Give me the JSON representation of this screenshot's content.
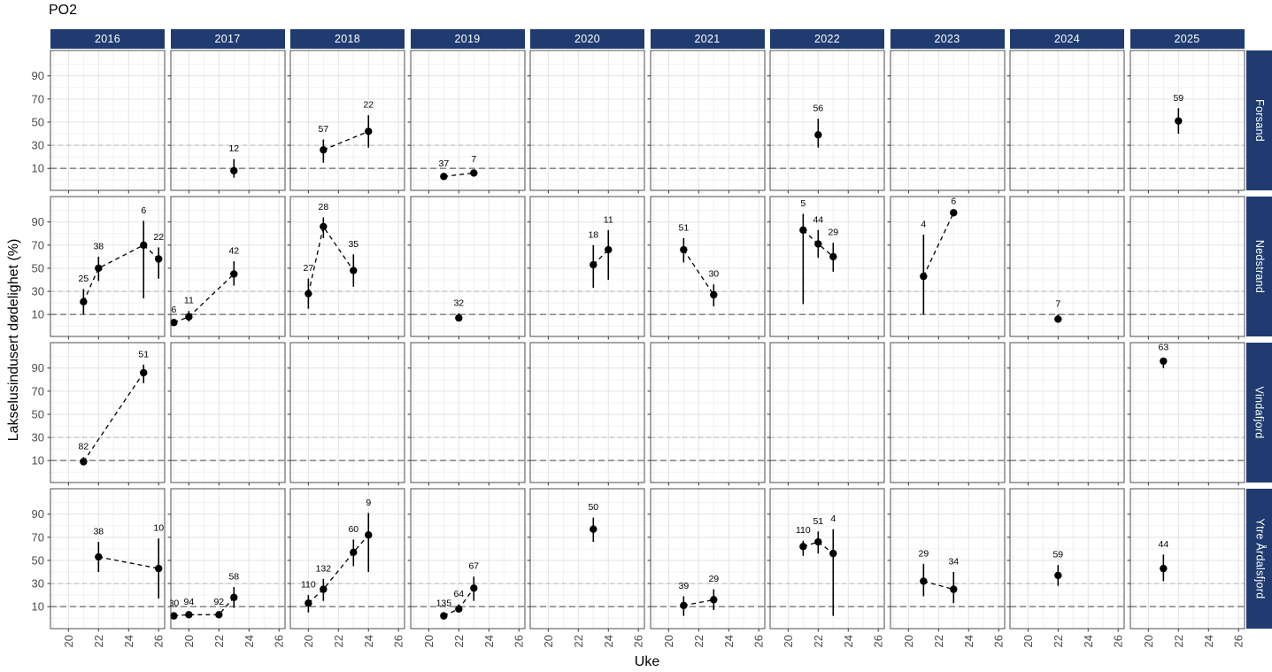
{
  "chart_data": {
    "type": "scatter",
    "title": "PO2",
    "xlabel": "Uke",
    "ylabel": "Lakselusindusert dødelighet (%)",
    "col_facets": [
      "2016",
      "2017",
      "2018",
      "2019",
      "2020",
      "2021",
      "2022",
      "2023",
      "2024",
      "2025"
    ],
    "row_facets": [
      "Forsand",
      "Nedstrand",
      "Vindafjord",
      "Ytre Årdalsfjord"
    ],
    "x_ticks": [
      20,
      22,
      24,
      26
    ],
    "x_minor": [
      19,
      21,
      23,
      25
    ],
    "y_ticks": [
      10,
      30,
      50,
      70,
      90
    ],
    "y_minor": [
      0,
      20,
      40,
      60,
      80,
      100
    ],
    "xlim": [
      18.8,
      26.4
    ],
    "ylim": [
      -9,
      112
    ],
    "legend": "none",
    "grid": "on",
    "ref_lines": [
      {
        "y": 30,
        "color": "#b3b3b3",
        "width": 1,
        "dash": "5,4"
      },
      {
        "y": 10,
        "color": "#8a8a8a",
        "width": 1.6,
        "dash": "7,4"
      }
    ],
    "colors": {
      "strip_fill": "#1f3b70",
      "strip_text": "#ffffff",
      "point": "#000000",
      "panel_border": "#4d4d4d",
      "grid_major": "#e3e3e3",
      "grid_minor": "#f0f0f0",
      "tick_label": "#4d4d4d"
    },
    "series": {
      "Forsand": {
        "2017": [
          {
            "w": 23,
            "v": 8,
            "lo": 2,
            "hi": 18,
            "n": "12"
          }
        ],
        "2018": [
          {
            "w": 21,
            "v": 26,
            "lo": 15,
            "hi": 35,
            "n": "57"
          },
          {
            "w": 24,
            "v": 42,
            "lo": 28,
            "hi": 56,
            "n": "22"
          }
        ],
        "2019": [
          {
            "w": 21,
            "v": 3,
            "lo": 2,
            "hi": 5,
            "n": "37"
          },
          {
            "w": 23,
            "v": 6,
            "lo": 3,
            "hi": 9,
            "n": "7"
          }
        ],
        "2022": [
          {
            "w": 22,
            "v": 39,
            "lo": 28,
            "hi": 53,
            "n": "56"
          }
        ],
        "2025": [
          {
            "w": 22,
            "v": 51,
            "lo": 40,
            "hi": 62,
            "n": "59"
          }
        ]
      },
      "Nedstrand": {
        "2016": [
          {
            "w": 21,
            "v": 21,
            "lo": 10,
            "hi": 32,
            "n": "25"
          },
          {
            "w": 22,
            "v": 50,
            "lo": 39,
            "hi": 60,
            "n": "38"
          },
          {
            "w": 25,
            "v": 70,
            "lo": 24,
            "hi": 91,
            "n": "6"
          },
          {
            "w": 26,
            "v": 58,
            "lo": 41,
            "hi": 68,
            "n": "22"
          }
        ],
        "2017": [
          {
            "w": 19,
            "v": 3,
            "lo": 2,
            "hi": 5,
            "n": "6"
          },
          {
            "w": 20,
            "v": 8,
            "lo": 4,
            "hi": 13,
            "n": "11"
          },
          {
            "w": 23,
            "v": 45,
            "lo": 35,
            "hi": 56,
            "n": "42"
          }
        ],
        "2018": [
          {
            "w": 20,
            "v": 28,
            "lo": 15,
            "hi": 41,
            "n": "27"
          },
          {
            "w": 21,
            "v": 86,
            "lo": 76,
            "hi": 94,
            "n": "28"
          },
          {
            "w": 23,
            "v": 48,
            "lo": 34,
            "hi": 62,
            "n": "35"
          }
        ],
        "2019": [
          {
            "w": 22,
            "v": 7,
            "lo": 5,
            "hi": 11,
            "n": "32"
          }
        ],
        "2020": [
          {
            "w": 23,
            "v": 53,
            "lo": 33,
            "hi": 70,
            "n": "18"
          },
          {
            "w": 24,
            "v": 66,
            "lo": 40,
            "hi": 83,
            "n": "11"
          }
        ],
        "2021": [
          {
            "w": 21,
            "v": 66,
            "lo": 55,
            "hi": 76,
            "n": "51"
          },
          {
            "w": 23,
            "v": 27,
            "lo": 17,
            "hi": 36,
            "n": "30"
          }
        ],
        "2022": [
          {
            "w": 21,
            "v": 83,
            "lo": 19,
            "hi": 97,
            "n": "5"
          },
          {
            "w": 22,
            "v": 71,
            "lo": 59,
            "hi": 83,
            "n": "44"
          },
          {
            "w": 23,
            "v": 60,
            "lo": 47,
            "hi": 72,
            "n": "29"
          }
        ],
        "2023": [
          {
            "w": 21,
            "v": 43,
            "lo": 10,
            "hi": 79,
            "n": "4"
          },
          {
            "w": 23,
            "v": 98,
            "lo": 95,
            "hi": 99,
            "n": "6"
          }
        ],
        "2024": [
          {
            "w": 22,
            "v": 6,
            "lo": 4,
            "hi": 10,
            "n": "7"
          }
        ]
      },
      "Vindafjord": {
        "2016": [
          {
            "w": 21,
            "v": 9,
            "lo": 6,
            "hi": 13,
            "n": "82"
          },
          {
            "w": 25,
            "v": 86,
            "lo": 77,
            "hi": 93,
            "n": "51"
          }
        ],
        "2025": [
          {
            "w": 21,
            "v": 96,
            "lo": 90,
            "hi": 99,
            "n": "63"
          }
        ]
      },
      "Ytre Årdalsfjord": {
        "2016": [
          {
            "w": 22,
            "v": 53,
            "lo": 40,
            "hi": 66,
            "n": "38"
          },
          {
            "w": 26,
            "v": 43,
            "lo": 17,
            "hi": 69,
            "n": "10"
          }
        ],
        "2017": [
          {
            "w": 19,
            "v": 2,
            "lo": 1,
            "hi": 4,
            "n": "30"
          },
          {
            "w": 20,
            "v": 3,
            "lo": 2,
            "hi": 5,
            "n": "94"
          },
          {
            "w": 22,
            "v": 3,
            "lo": 2,
            "hi": 5,
            "n": "92"
          },
          {
            "w": 23,
            "v": 18,
            "lo": 9,
            "hi": 27,
            "n": "58"
          }
        ],
        "2018": [
          {
            "w": 20,
            "v": 13,
            "lo": 5,
            "hi": 20,
            "n": "110"
          },
          {
            "w": 21,
            "v": 25,
            "lo": 15,
            "hi": 34,
            "n": "132"
          },
          {
            "w": 23,
            "v": 57,
            "lo": 45,
            "hi": 68,
            "n": "60"
          },
          {
            "w": 24,
            "v": 72,
            "lo": 40,
            "hi": 91,
            "n": "9"
          }
        ],
        "2019": [
          {
            "w": 21,
            "v": 2,
            "lo": 1,
            "hi": 4,
            "n": "135"
          },
          {
            "w": 22,
            "v": 8,
            "lo": 5,
            "hi": 12,
            "n": "64"
          },
          {
            "w": 23,
            "v": 26,
            "lo": 15,
            "hi": 36,
            "n": "67"
          }
        ],
        "2020": [
          {
            "w": 23,
            "v": 77,
            "lo": 66,
            "hi": 87,
            "n": "50"
          }
        ],
        "2021": [
          {
            "w": 21,
            "v": 11,
            "lo": 2,
            "hi": 19,
            "n": "39"
          },
          {
            "w": 23,
            "v": 16,
            "lo": 7,
            "hi": 25,
            "n": "29"
          }
        ],
        "2022": [
          {
            "w": 21,
            "v": 62,
            "lo": 54,
            "hi": 67,
            "n": "110"
          },
          {
            "w": 22,
            "v": 66,
            "lo": 56,
            "hi": 75,
            "n": "51"
          },
          {
            "w": 23,
            "v": 56,
            "lo": 2,
            "hi": 77,
            "n": "4"
          }
        ],
        "2023": [
          {
            "w": 21,
            "v": 32,
            "lo": 19,
            "hi": 47,
            "n": "29"
          },
          {
            "w": 23,
            "v": 25,
            "lo": 13,
            "hi": 40,
            "n": "34"
          }
        ],
        "2024": [
          {
            "w": 22,
            "v": 37,
            "lo": 28,
            "hi": 46,
            "n": "59"
          }
        ],
        "2025": [
          {
            "w": 21,
            "v": 43,
            "lo": 32,
            "hi": 55,
            "n": "44"
          }
        ]
      }
    }
  }
}
